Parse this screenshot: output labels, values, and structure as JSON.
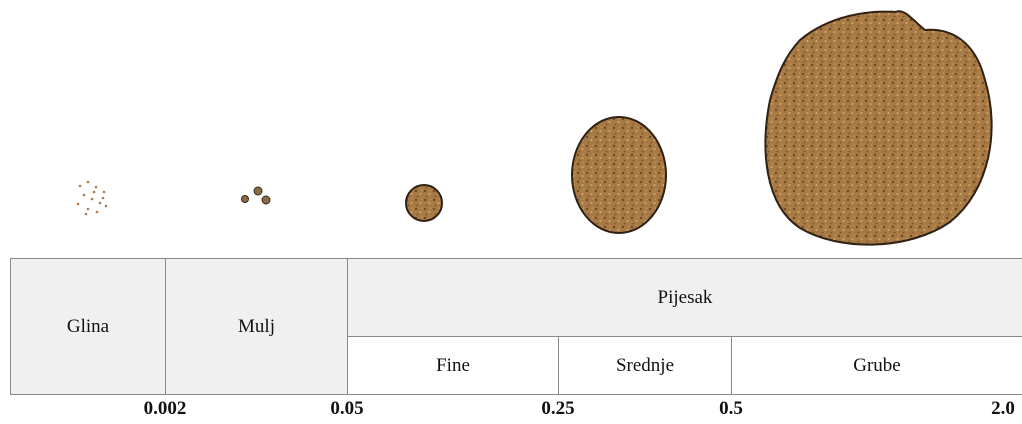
{
  "table": {
    "glina": "Glina",
    "mulj": "Mulj",
    "pijesak": "Pijesak",
    "sub": [
      "Fine",
      "Srednje",
      "Grube"
    ]
  },
  "scale": [
    "0.002",
    "0.05",
    "0.25",
    "0.5",
    "2.0"
  ]
}
